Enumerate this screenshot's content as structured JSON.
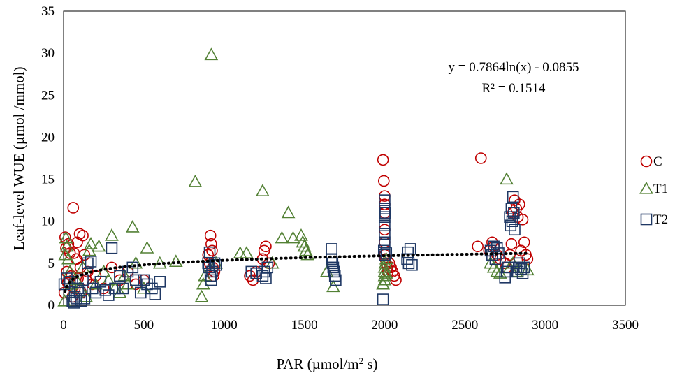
{
  "chart_data": {
    "type": "scatter",
    "xlabel": "PAR (µmol/m",
    "xlabel_sup": "2",
    "xlabel_end": " s)",
    "ylabel": "Leaf-level WUE (µmol /mmol)",
    "xlim": [
      0,
      3500
    ],
    "ylim": [
      0,
      35
    ],
    "x_ticks": [
      0,
      500,
      1000,
      1500,
      2000,
      2500,
      3000,
      3500
    ],
    "y_ticks": [
      0,
      5,
      10,
      15,
      20,
      25,
      30,
      35
    ],
    "grid": false,
    "legend_position": "right",
    "trendline": {
      "type": "log",
      "a": 0.7864,
      "b": -0.0855,
      "equation": "y = 0.7864ln(x) - 0.0855",
      "r2_label": "R² = 0.1514",
      "color": "#000000",
      "style": "dotted"
    },
    "series": [
      {
        "name": "C",
        "marker": "circle",
        "color": "#c00000",
        "points": [
          [
            5,
            1.5
          ],
          [
            10,
            8.1
          ],
          [
            15,
            6.8
          ],
          [
            20,
            4.0
          ],
          [
            25,
            2.7
          ],
          [
            30,
            7.3
          ],
          [
            40,
            6.2
          ],
          [
            50,
            3.5
          ],
          [
            55,
            1.0
          ],
          [
            60,
            11.6
          ],
          [
            65,
            6.2
          ],
          [
            70,
            2.0
          ],
          [
            80,
            5.5
          ],
          [
            85,
            7.5
          ],
          [
            90,
            3.2
          ],
          [
            100,
            8.5
          ],
          [
            105,
            4.5
          ],
          [
            110,
            1.5
          ],
          [
            120,
            8.3
          ],
          [
            130,
            6.0
          ],
          [
            140,
            3.0
          ],
          [
            150,
            4.0
          ],
          [
            180,
            2.5
          ],
          [
            200,
            3.5
          ],
          [
            250,
            2.0
          ],
          [
            300,
            4.5
          ],
          [
            350,
            3.0
          ],
          [
            400,
            4.0
          ],
          [
            450,
            2.5
          ],
          [
            500,
            3.0
          ],
          [
            900,
            6.0
          ],
          [
            910,
            5.0
          ],
          [
            915,
            8.3
          ],
          [
            920,
            7.3
          ],
          [
            925,
            6.5
          ],
          [
            930,
            4.5
          ],
          [
            935,
            3.5
          ],
          [
            940,
            4.0
          ],
          [
            1160,
            3.5
          ],
          [
            1180,
            3.0
          ],
          [
            1200,
            4.0
          ],
          [
            1240,
            5.5
          ],
          [
            1250,
            6.5
          ],
          [
            1260,
            7.0
          ],
          [
            1280,
            5.0
          ],
          [
            1990,
            17.3
          ],
          [
            1995,
            14.8
          ],
          [
            2000,
            13.0
          ],
          [
            2000,
            12.0
          ],
          [
            2000,
            11.0
          ],
          [
            2000,
            9.0
          ],
          [
            2000,
            7.5
          ],
          [
            2000,
            6.0
          ],
          [
            2005,
            5.5
          ],
          [
            2010,
            5.0
          ],
          [
            2015,
            4.5
          ],
          [
            2020,
            4.0
          ],
          [
            2030,
            5.0
          ],
          [
            2040,
            4.5
          ],
          [
            2050,
            4.0
          ],
          [
            2060,
            3.5
          ],
          [
            2070,
            3.0
          ],
          [
            2580,
            7.0
          ],
          [
            2600,
            17.5
          ],
          [
            2650,
            6.5
          ],
          [
            2670,
            7.5
          ],
          [
            2680,
            7.0
          ],
          [
            2700,
            6.0
          ],
          [
            2720,
            5.5
          ],
          [
            2750,
            5.0
          ],
          [
            2760,
            4.5
          ],
          [
            2780,
            6.0
          ],
          [
            2790,
            7.3
          ],
          [
            2800,
            11.0
          ],
          [
            2810,
            12.5
          ],
          [
            2820,
            11.5
          ],
          [
            2830,
            10.5
          ],
          [
            2840,
            12.0
          ],
          [
            2850,
            6.5
          ],
          [
            2860,
            10.2
          ],
          [
            2870,
            7.5
          ],
          [
            2880,
            6.0
          ],
          [
            2890,
            5.5
          ]
        ]
      },
      {
        "name": "T1",
        "marker": "triangle",
        "color": "#538135",
        "points": [
          [
            5,
            0.5
          ],
          [
            10,
            6.0
          ],
          [
            15,
            8.0
          ],
          [
            20,
            7.0
          ],
          [
            30,
            5.5
          ],
          [
            40,
            4.0
          ],
          [
            50,
            2.5
          ],
          [
            60,
            1.5
          ],
          [
            80,
            3.0
          ],
          [
            100,
            2.0
          ],
          [
            120,
            4.5
          ],
          [
            140,
            1.0
          ],
          [
            160,
            6.5
          ],
          [
            170,
            7.3
          ],
          [
            200,
            2.5
          ],
          [
            220,
            7.0
          ],
          [
            250,
            4.0
          ],
          [
            280,
            3.0
          ],
          [
            300,
            8.3
          ],
          [
            320,
            2.0
          ],
          [
            350,
            1.5
          ],
          [
            380,
            3.5
          ],
          [
            400,
            2.5
          ],
          [
            430,
            9.3
          ],
          [
            450,
            5.0
          ],
          [
            500,
            2.0
          ],
          [
            520,
            6.8
          ],
          [
            600,
            5.0
          ],
          [
            700,
            5.2
          ],
          [
            820,
            14.7
          ],
          [
            860,
            1.0
          ],
          [
            870,
            2.5
          ],
          [
            880,
            3.5
          ],
          [
            920,
            29.8
          ],
          [
            950,
            5.0
          ],
          [
            1100,
            6.2
          ],
          [
            1140,
            6.2
          ],
          [
            1240,
            13.6
          ],
          [
            1300,
            5.0
          ],
          [
            1360,
            8.0
          ],
          [
            1400,
            11.0
          ],
          [
            1430,
            8.0
          ],
          [
            1480,
            8.3
          ],
          [
            1490,
            7.5
          ],
          [
            1500,
            7.0
          ],
          [
            1510,
            6.5
          ],
          [
            1520,
            6.0
          ],
          [
            1640,
            4.0
          ],
          [
            1680,
            2.2
          ],
          [
            1990,
            2.5
          ],
          [
            2000,
            3.0
          ],
          [
            2000,
            3.5
          ],
          [
            2000,
            4.0
          ],
          [
            2000,
            4.5
          ],
          [
            2005,
            5.0
          ],
          [
            2010,
            5.5
          ],
          [
            2010,
            3.8
          ],
          [
            2660,
            5.0
          ],
          [
            2680,
            4.5
          ],
          [
            2700,
            4.0
          ],
          [
            2720,
            3.8
          ],
          [
            2760,
            15.0
          ],
          [
            2780,
            4.5
          ],
          [
            2800,
            5.0
          ],
          [
            2820,
            4.0
          ],
          [
            2860,
            4.5
          ],
          [
            2890,
            4.2
          ]
        ]
      },
      {
        "name": "T2",
        "marker": "square",
        "color": "#1f3864",
        "points": [
          [
            5,
            2.5
          ],
          [
            20,
            3.2
          ],
          [
            40,
            2.8
          ],
          [
            55,
            0.5
          ],
          [
            65,
            0.3
          ],
          [
            70,
            1.0
          ],
          [
            80,
            0.8
          ],
          [
            90,
            2.0
          ],
          [
            100,
            1.5
          ],
          [
            110,
            0.5
          ],
          [
            120,
            3.0
          ],
          [
            130,
            0.8
          ],
          [
            150,
            5.0
          ],
          [
            170,
            5.2
          ],
          [
            180,
            2.0
          ],
          [
            200,
            1.5
          ],
          [
            230,
            2.8
          ],
          [
            260,
            1.8
          ],
          [
            280,
            1.2
          ],
          [
            300,
            6.8
          ],
          [
            320,
            2.0
          ],
          [
            350,
            3.5
          ],
          [
            370,
            2.0
          ],
          [
            400,
            4.0
          ],
          [
            430,
            4.5
          ],
          [
            450,
            3.0
          ],
          [
            480,
            1.5
          ],
          [
            500,
            3.0
          ],
          [
            520,
            2.5
          ],
          [
            550,
            2.0
          ],
          [
            570,
            1.3
          ],
          [
            600,
            2.8
          ],
          [
            900,
            5.0
          ],
          [
            905,
            4.5
          ],
          [
            910,
            6.3
          ],
          [
            915,
            3.5
          ],
          [
            920,
            3.0
          ],
          [
            925,
            4.0
          ],
          [
            940,
            5.0
          ],
          [
            950,
            4.8
          ],
          [
            1170,
            4.0
          ],
          [
            1200,
            3.8
          ],
          [
            1240,
            3.5
          ],
          [
            1250,
            4.0
          ],
          [
            1260,
            3.2
          ],
          [
            1270,
            4.5
          ],
          [
            1670,
            6.7
          ],
          [
            1670,
            5.5
          ],
          [
            1675,
            5.0
          ],
          [
            1680,
            4.5
          ],
          [
            1685,
            4.0
          ],
          [
            1690,
            3.5
          ],
          [
            1695,
            3.0
          ],
          [
            1990,
            0.7
          ],
          [
            1995,
            6.5
          ],
          [
            2000,
            6.0
          ],
          [
            2000,
            7.5
          ],
          [
            2000,
            8.5
          ],
          [
            2000,
            9.5
          ],
          [
            2000,
            10.5
          ],
          [
            2000,
            11.5
          ],
          [
            2000,
            12.5
          ],
          [
            2005,
            11.0
          ],
          [
            2010,
            6.2
          ],
          [
            2140,
            5.5
          ],
          [
            2145,
            6.3
          ],
          [
            2150,
            5.0
          ],
          [
            2160,
            6.7
          ],
          [
            2170,
            4.8
          ],
          [
            2660,
            6.5
          ],
          [
            2670,
            6.0
          ],
          [
            2680,
            7.0
          ],
          [
            2690,
            5.5
          ],
          [
            2700,
            6.8
          ],
          [
            2710,
            6.2
          ],
          [
            2750,
            3.3
          ],
          [
            2760,
            4.0
          ],
          [
            2770,
            4.5
          ],
          [
            2780,
            10.5
          ],
          [
            2785,
            9.5
          ],
          [
            2790,
            11.5
          ],
          [
            2795,
            10.0
          ],
          [
            2800,
            12.9
          ],
          [
            2805,
            11.0
          ],
          [
            2810,
            9.0
          ],
          [
            2820,
            4.5
          ],
          [
            2830,
            4.0
          ],
          [
            2840,
            5.0
          ],
          [
            2850,
            4.3
          ],
          [
            2860,
            3.8
          ],
          [
            2870,
            4.5
          ]
        ]
      }
    ]
  }
}
